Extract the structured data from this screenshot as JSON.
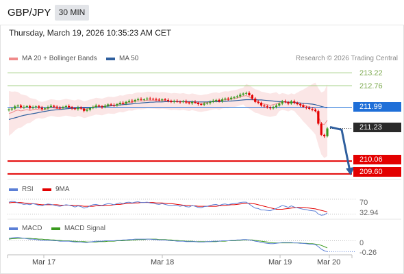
{
  "header": {
    "symbol": "GBP/JPY",
    "timeframe": "30 MIN",
    "datetime": "Thursday, March 19, 2026 10:35:23 AM CET",
    "copyright": "Research © 2026 Trading Central"
  },
  "legend": {
    "main": [
      {
        "label": "MA 20 + Bollinger Bands",
        "color": "#f08a8a"
      },
      {
        "label": "MA 50",
        "color": "#2f5f9e"
      }
    ],
    "rsi": [
      {
        "label": "RSI",
        "color": "#5b7fd6"
      },
      {
        "label": "9MA",
        "color": "#e30000"
      }
    ],
    "macd": [
      {
        "label": "MACD",
        "color": "#5b7fd6"
      },
      {
        "label": "MACD Signal",
        "color": "#3a9a1e"
      }
    ]
  },
  "price_labels": [
    {
      "name": "resistance-2",
      "text": "213.22",
      "style": "green"
    },
    {
      "name": "resistance-1",
      "text": "212.76",
      "style": "green"
    },
    {
      "name": "pivot",
      "text": "211.99",
      "style": "blue"
    },
    {
      "name": "last-price",
      "text": "211.23",
      "style": "dark"
    },
    {
      "name": "support-1",
      "text": "210.06",
      "style": "red"
    },
    {
      "name": "support-2",
      "text": "209.60",
      "style": "red"
    }
  ],
  "rsi_labels": {
    "level": "70",
    "value": "32.94"
  },
  "macd_labels": {
    "level": "0",
    "value": "-0.26"
  },
  "x_labels": [
    "Mar 17",
    "Mar 18",
    "Mar 19",
    "Mar 20"
  ],
  "colors": {
    "up": "#3a9a1e",
    "down": "#e30000",
    "ma50": "#2f5f9e",
    "bands": "#f4b7b7",
    "pivot": "#1f6fd8",
    "support": "#e30000",
    "resistance": "#9bcc7a",
    "arrow": "#2f5f9e"
  },
  "chart_data": [
    {
      "type": "candlestick",
      "pair": "GBP/JPY",
      "timeframe": "30 MIN",
      "x_ticks": [
        "Mar 17",
        "Mar 18",
        "Mar 19",
        "Mar 20"
      ],
      "ylim": [
        209.4,
        213.5
      ],
      "levels": {
        "resistance": [
          213.22,
          212.76
        ],
        "pivot": 211.99,
        "support": [
          210.06,
          209.6
        ],
        "last": 211.23
      },
      "close": [
        211.91,
        211.94,
        212.02,
        212.05,
        211.98,
        212.0,
        212.03,
        211.96,
        211.99,
        212.02,
        211.97,
        211.92,
        211.95,
        212.0,
        212.04,
        212.01,
        211.97,
        211.96,
        212.0,
        212.03,
        211.99,
        211.95,
        211.92,
        211.98,
        211.94,
        211.86,
        211.9,
        211.96,
        212.0,
        212.05,
        212.02,
        211.99,
        212.04,
        212.09,
        212.07,
        212.05,
        212.1,
        212.15,
        212.12,
        212.18,
        212.22,
        212.2,
        212.25,
        212.28,
        212.26,
        212.27,
        212.3,
        212.29,
        212.28,
        212.26,
        212.24,
        212.27,
        212.25,
        212.22,
        212.18,
        212.21,
        212.19,
        212.17,
        212.2,
        212.16,
        212.13,
        212.18,
        212.15,
        212.1,
        212.08,
        212.12,
        212.14,
        212.18,
        212.22,
        212.25,
        212.2,
        212.27,
        212.3,
        212.28,
        212.33,
        212.35,
        212.38,
        212.44,
        212.48,
        212.5,
        212.42,
        212.3,
        212.18,
        212.15,
        212.05,
        212.02,
        211.98,
        211.95,
        212.0,
        212.05,
        212.12,
        212.2,
        212.17,
        212.12,
        212.2,
        212.15,
        212.1,
        212.06,
        212.0,
        211.97,
        211.93,
        211.9,
        211.85,
        211.4,
        211.0,
        210.95,
        211.23
      ],
      "ma50": [
        211.55,
        211.58,
        211.61,
        211.64,
        211.67,
        211.7,
        211.72,
        211.74,
        211.76,
        211.78,
        211.8,
        211.82,
        211.84,
        211.86,
        211.88,
        211.89,
        211.9,
        211.91,
        211.92,
        211.93,
        211.94,
        211.95,
        211.95,
        211.96,
        211.96,
        211.96,
        211.97,
        211.97,
        211.98,
        211.99,
        212.0,
        212.01,
        212.02,
        212.03,
        212.04,
        212.05,
        212.06,
        212.07,
        212.08,
        212.09,
        212.1,
        212.11,
        212.12,
        212.13,
        212.14,
        212.15,
        212.16,
        212.17,
        212.17,
        212.18,
        212.18,
        212.18,
        212.19,
        212.19,
        212.19,
        212.19,
        212.19,
        212.19,
        212.19,
        212.19,
        212.19,
        212.19,
        212.18,
        212.18,
        212.18,
        212.18,
        212.18,
        212.19,
        212.19,
        212.19,
        212.19,
        212.2,
        212.2,
        212.21,
        212.21,
        212.22,
        212.23,
        212.24,
        212.25,
        212.26,
        212.26,
        212.26,
        212.26,
        212.25,
        212.25,
        212.24,
        212.23,
        212.22,
        212.21,
        212.2,
        212.19,
        212.19,
        212.18,
        212.17,
        212.17,
        212.16,
        212.15,
        212.14,
        212.13,
        212.12,
        212.11,
        212.1,
        212.08,
        212.05,
        212.02,
        211.99,
        211.97
      ],
      "bollinger": {
        "upper_width": 0.3,
        "lower_width": 0.3,
        "note_widen_end": true
      }
    },
    {
      "type": "line",
      "name": "RSI",
      "series_names": [
        "RSI",
        "9MA"
      ],
      "ylim": [
        0,
        100
      ],
      "levels": [
        70
      ],
      "last": 32.94,
      "rsi": [
        62,
        64,
        63,
        60,
        58,
        56,
        57,
        55,
        58,
        56,
        53,
        52,
        55,
        57,
        56,
        54,
        52,
        51,
        53,
        55,
        54,
        52,
        49,
        52,
        50,
        46,
        48,
        52,
        55,
        56,
        54,
        53,
        56,
        58,
        57,
        55,
        58,
        60,
        58,
        61,
        62,
        60,
        62,
        63,
        61,
        61,
        62,
        60,
        59,
        57,
        56,
        58,
        56,
        54,
        52,
        54,
        53,
        51,
        53,
        50,
        49,
        53,
        51,
        48,
        47,
        50,
        51,
        53,
        55,
        56,
        53,
        56,
        57,
        55,
        57,
        58,
        59,
        61,
        62,
        62,
        57,
        51,
        46,
        45,
        41,
        41,
        40,
        39,
        42,
        45,
        49,
        53,
        51,
        48,
        52,
        49,
        47,
        45,
        43,
        42,
        40,
        39,
        38,
        30,
        27,
        28,
        33
      ],
      "ma9": [
        60,
        61,
        61,
        61,
        61,
        60,
        59,
        58,
        58,
        57,
        56,
        55,
        55,
        55,
        55,
        55,
        55,
        54,
        54,
        54,
        54,
        54,
        53,
        53,
        52,
        51,
        51,
        51,
        51,
        52,
        52,
        52,
        53,
        54,
        54,
        55,
        56,
        56,
        57,
        58,
        59,
        59,
        60,
        60,
        61,
        61,
        61,
        61,
        61,
        60,
        60,
        60,
        59,
        58,
        58,
        57,
        56,
        55,
        54,
        53,
        53,
        52,
        52,
        51,
        51,
        51,
        51,
        51,
        51,
        51,
        52,
        52,
        53,
        54,
        55,
        55,
        56,
        57,
        58,
        59,
        59,
        58,
        57,
        55,
        53,
        51,
        49,
        47,
        45,
        43,
        43,
        43,
        44,
        45,
        46,
        47,
        48,
        48,
        48,
        47,
        46,
        45,
        44,
        42,
        40,
        38,
        36
      ]
    },
    {
      "type": "line",
      "name": "MACD",
      "series_names": [
        "MACD",
        "MACD Signal"
      ],
      "levels": [
        0
      ],
      "last": -0.26,
      "ylim": [
        -0.32,
        0.14
      ],
      "macd": [
        0.06,
        0.07,
        0.08,
        0.08,
        0.07,
        0.06,
        0.05,
        0.04,
        0.04,
        0.03,
        0.02,
        0.01,
        0.01,
        0.01,
        0.01,
        0.0,
        0.0,
        -0.01,
        -0.01,
        -0.01,
        -0.01,
        -0.02,
        -0.03,
        -0.03,
        -0.03,
        -0.04,
        -0.04,
        -0.03,
        -0.02,
        -0.01,
        -0.01,
        -0.01,
        0.0,
        0.0,
        0.0,
        0.0,
        0.01,
        0.01,
        0.02,
        0.02,
        0.03,
        0.03,
        0.04,
        0.04,
        0.04,
        0.04,
        0.04,
        0.04,
        0.03,
        0.03,
        0.02,
        0.02,
        0.02,
        0.01,
        0.0,
        0.0,
        -0.01,
        -0.01,
        -0.01,
        -0.02,
        -0.02,
        -0.02,
        -0.02,
        -0.03,
        -0.03,
        -0.03,
        -0.02,
        -0.02,
        -0.01,
        -0.01,
        -0.01,
        0.0,
        0.0,
        0.0,
        0.01,
        0.01,
        0.02,
        0.02,
        0.03,
        0.03,
        0.02,
        0.01,
        -0.01,
        -0.02,
        -0.04,
        -0.05,
        -0.06,
        -0.07,
        -0.07,
        -0.06,
        -0.05,
        -0.04,
        -0.04,
        -0.04,
        -0.04,
        -0.05,
        -0.05,
        -0.06,
        -0.06,
        -0.07,
        -0.08,
        -0.08,
        -0.09,
        -0.14,
        -0.2,
        -0.24,
        -0.26
      ],
      "signal": [
        0.04,
        0.05,
        0.05,
        0.06,
        0.06,
        0.06,
        0.06,
        0.06,
        0.05,
        0.05,
        0.04,
        0.04,
        0.03,
        0.03,
        0.02,
        0.02,
        0.01,
        0.01,
        0.0,
        0.0,
        0.0,
        -0.01,
        -0.01,
        -0.02,
        -0.02,
        -0.02,
        -0.03,
        -0.03,
        -0.03,
        -0.03,
        -0.02,
        -0.02,
        -0.02,
        -0.01,
        -0.01,
        -0.01,
        0.0,
        0.0,
        0.0,
        0.01,
        0.01,
        0.02,
        0.02,
        0.03,
        0.03,
        0.03,
        0.04,
        0.04,
        0.04,
        0.04,
        0.03,
        0.03,
        0.03,
        0.02,
        0.02,
        0.01,
        0.01,
        0.0,
        0.0,
        -0.01,
        -0.01,
        -0.01,
        -0.02,
        -0.02,
        -0.02,
        -0.02,
        -0.02,
        -0.02,
        -0.02,
        -0.02,
        -0.01,
        -0.01,
        -0.01,
        0.0,
        0.0,
        0.0,
        0.01,
        0.01,
        0.02,
        0.02,
        0.02,
        0.02,
        0.01,
        0.0,
        -0.01,
        -0.02,
        -0.03,
        -0.04,
        -0.05,
        -0.05,
        -0.05,
        -0.05,
        -0.05,
        -0.05,
        -0.05,
        -0.05,
        -0.05,
        -0.05,
        -0.06,
        -0.06,
        -0.07,
        -0.07,
        -0.08,
        -0.09,
        -0.11,
        -0.14,
        -0.17
      ]
    }
  ]
}
